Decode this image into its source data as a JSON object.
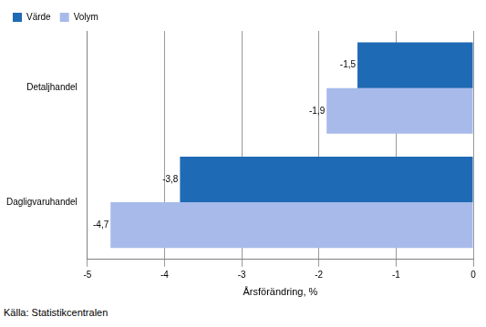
{
  "chart_data": {
    "type": "bar",
    "orientation": "horizontal",
    "categories": [
      "Detaljhandel",
      "Dagligvaruhandel"
    ],
    "series": [
      {
        "name": "Värde",
        "color": "#1f6ab4",
        "values": [
          -1.5,
          -3.8
        ],
        "value_labels": [
          "-1,5",
          "-3,8"
        ]
      },
      {
        "name": "Volym",
        "color": "#a7baea",
        "values": [
          -1.9,
          -4.7
        ],
        "value_labels": [
          "-1,9",
          "-4,7"
        ]
      }
    ],
    "x_label": "Årsförändring, %",
    "xlim": [
      -5,
      0
    ],
    "xticks": [
      -5,
      -4,
      -3,
      -2,
      -1,
      0
    ],
    "grid": true,
    "legend": "upper left",
    "data_labels": true,
    "source": "Källa: Statistikcentralen"
  }
}
